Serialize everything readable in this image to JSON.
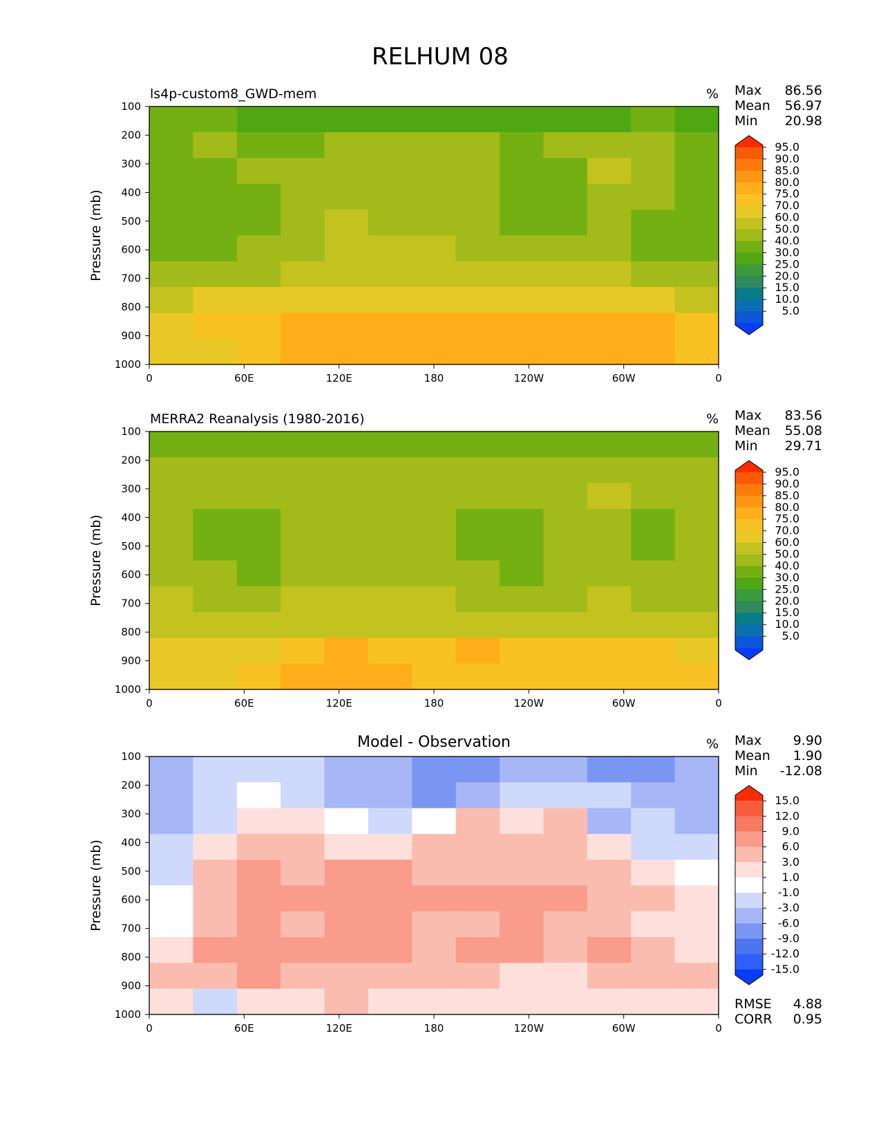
{
  "figure_title": "RELHUM 08",
  "colors": {
    "rh_levels": [
      "#0a3cff",
      "#0b57d8",
      "#0a70b0",
      "#087c87",
      "#2f8b5e",
      "#3b9a3a",
      "#4fa812",
      "#75b012",
      "#a3bb1a",
      "#c4c21f",
      "#e9c928",
      "#f8c322",
      "#fdae18",
      "#fd9612",
      "#fc7a0b",
      "#fb5a05",
      "#fd2b00"
    ],
    "diff_levels": [
      "#0a3cff",
      "#2e5ff6",
      "#4d75f0",
      "#7b95f2",
      "#a6b6f7",
      "#cfd9fb",
      "#ffffff",
      "#fde0dc",
      "#fbbcb0",
      "#f99c8b",
      "#f77a63",
      "#f85a3c",
      "#fd2b00"
    ]
  },
  "panels": [
    {
      "title": "ls4p-custom8_GWD-mem",
      "units": "%",
      "stats": [
        [
          "Max",
          "86.56"
        ],
        [
          "Mean",
          "56.97"
        ],
        [
          "Min",
          "20.98"
        ]
      ],
      "colorbar_labels": [
        "95.0",
        "90.0",
        "85.0",
        "80.0",
        "75.0",
        "70.0",
        "60.0",
        "50.0",
        "40.0",
        "30.0",
        "25.0",
        "20.0",
        "15.0",
        "10.0",
        "5.0"
      ],
      "ylabel": "Pressure (mb)",
      "yticks": [
        "100",
        "200",
        "300",
        "400",
        "500",
        "600",
        "700",
        "800",
        "900",
        "1000"
      ],
      "xticks": [
        "0",
        "60E",
        "120E",
        "180",
        "120W",
        "60W",
        "0"
      ]
    },
    {
      "title": "MERRA2 Reanalysis (1980-2016)",
      "units": "%",
      "stats": [
        [
          "Max",
          "83.56"
        ],
        [
          "Mean",
          "55.08"
        ],
        [
          "Min",
          "29.71"
        ]
      ],
      "colorbar_labels": [
        "95.0",
        "90.0",
        "85.0",
        "80.0",
        "75.0",
        "70.0",
        "60.0",
        "50.0",
        "40.0",
        "30.0",
        "25.0",
        "20.0",
        "15.0",
        "10.0",
        "5.0"
      ],
      "ylabel": "Pressure (mb)",
      "yticks": [
        "100",
        "200",
        "300",
        "400",
        "500",
        "600",
        "700",
        "800",
        "900",
        "1000"
      ],
      "xticks": [
        "0",
        "60E",
        "120E",
        "180",
        "120W",
        "60W",
        "0"
      ]
    },
    {
      "title": "Model - Observation",
      "units": "%",
      "stats": [
        [
          "Max",
          "9.90"
        ],
        [
          "Mean",
          "1.90"
        ],
        [
          "Min",
          "-12.08"
        ]
      ],
      "colorbar_labels": [
        "15.0",
        "12.0",
        "9.0",
        "6.0",
        "3.0",
        "1.0",
        "-1.0",
        "-3.0",
        "-6.0",
        "-9.0",
        "-12.0",
        "-15.0"
      ],
      "ylabel": "Pressure (mb)",
      "yticks": [
        "100",
        "200",
        "300",
        "400",
        "500",
        "600",
        "700",
        "800",
        "900",
        "1000"
      ],
      "xticks": [
        "0",
        "60E",
        "120E",
        "180",
        "120W",
        "60W",
        "0"
      ],
      "metrics": [
        [
          "RMSE",
          "4.88"
        ],
        [
          "CORR",
          "0.95"
        ]
      ]
    }
  ],
  "chart_data": [
    {
      "type": "heatmap",
      "title": "ls4p-custom8_GWD-mem",
      "xlabel": "",
      "ylabel": "Pressure (mb)",
      "x": [
        "0",
        "60E",
        "120E",
        "180",
        "120W",
        "60W",
        "0"
      ],
      "y": [
        100,
        200,
        300,
        400,
        500,
        600,
        700,
        800,
        900,
        1000
      ],
      "ylim": [
        1000,
        100
      ],
      "levels": [
        5,
        10,
        15,
        20,
        25,
        30,
        40,
        50,
        60,
        70,
        75,
        80,
        85,
        90,
        95
      ],
      "values": [
        [
          40,
          42,
          38,
          37,
          38,
          38,
          36,
          35,
          30,
          31,
          36,
          40,
          38
        ],
        [
          48,
          50,
          48,
          47,
          52,
          53,
          52,
          52,
          48,
          52,
          58,
          55,
          47
        ],
        [
          45,
          47,
          50,
          56,
          58,
          57,
          56,
          55,
          47,
          48,
          65,
          55,
          46
        ],
        [
          40,
          42,
          48,
          57,
          58,
          56,
          55,
          52,
          46,
          46,
          58,
          55,
          42
        ],
        [
          42,
          44,
          48,
          57,
          62,
          58,
          58,
          52,
          46,
          46,
          52,
          48,
          44
        ],
        [
          48,
          46,
          52,
          58,
          66,
          62,
          60,
          56,
          52,
          54,
          54,
          48,
          46
        ],
        [
          58,
          56,
          56,
          62,
          68,
          66,
          64,
          62,
          60,
          60,
          62,
          56,
          52
        ],
        [
          68,
          70,
          72,
          72,
          74,
          74,
          72,
          70,
          70,
          70,
          72,
          70,
          66
        ],
        [
          74,
          76,
          78,
          82,
          82,
          80,
          80,
          82,
          80,
          80,
          82,
          80,
          76
        ],
        [
          70,
          74,
          78,
          82,
          80,
          82,
          80,
          82,
          80,
          80,
          80,
          82,
          78
        ]
      ]
    },
    {
      "type": "heatmap",
      "title": "MERRA2 Reanalysis (1980-2016)",
      "xlabel": "",
      "ylabel": "Pressure (mb)",
      "x": [
        "0",
        "60E",
        "120E",
        "180",
        "120W",
        "60W",
        "0"
      ],
      "y": [
        100,
        200,
        300,
        400,
        500,
        600,
        700,
        800,
        900,
        1000
      ],
      "ylim": [
        1000,
        100
      ],
      "levels": [
        5,
        10,
        15,
        20,
        25,
        30,
        40,
        50,
        60,
        70,
        75,
        80,
        85,
        90,
        95
      ],
      "values": [
        [
          44,
          45,
          44,
          46,
          47,
          47,
          46,
          45,
          44,
          45,
          46,
          46,
          45
        ],
        [
          53,
          54,
          51,
          55,
          56,
          56,
          55,
          52,
          52,
          56,
          58,
          56,
          53
        ],
        [
          56,
          55,
          52,
          56,
          58,
          58,
          57,
          52,
          54,
          58,
          64,
          57,
          55
        ],
        [
          50,
          46,
          40,
          55,
          58,
          58,
          55,
          45,
          40,
          52,
          56,
          46,
          50
        ],
        [
          52,
          48,
          40,
          55,
          58,
          57,
          52,
          44,
          40,
          52,
          54,
          44,
          50
        ],
        [
          56,
          52,
          44,
          56,
          58,
          58,
          56,
          50,
          46,
          54,
          55,
          50,
          54
        ],
        [
          60,
          58,
          56,
          60,
          62,
          60,
          60,
          58,
          56,
          58,
          60,
          58,
          58
        ],
        [
          62,
          64,
          64,
          66,
          68,
          68,
          66,
          66,
          64,
          66,
          68,
          66,
          64
        ],
        [
          70,
          70,
          74,
          78,
          80,
          78,
          78,
          80,
          76,
          76,
          78,
          78,
          72
        ],
        [
          74,
          74,
          78,
          80,
          80,
          80,
          78,
          78,
          78,
          78,
          78,
          78,
          76
        ]
      ]
    },
    {
      "type": "heatmap",
      "title": "Model - Observation",
      "xlabel": "",
      "ylabel": "Pressure (mb)",
      "x": [
        "0",
        "60E",
        "120E",
        "180",
        "120W",
        "60W",
        "0"
      ],
      "y": [
        100,
        200,
        300,
        400,
        500,
        600,
        700,
        800,
        900,
        1000
      ],
      "ylim": [
        1000,
        100
      ],
      "levels": [
        -15,
        -12,
        -9,
        -6,
        -3,
        -1,
        1,
        3,
        6,
        9,
        12,
        15
      ],
      "values": [
        [
          -4,
          -3,
          -2,
          -3,
          -5,
          -6,
          -7,
          -8,
          -6,
          -6,
          -9,
          -8,
          -5
        ],
        [
          -4,
          -3,
          0,
          -2,
          -4,
          -6,
          -7,
          -6,
          -3,
          -2,
          -3,
          -4,
          -4
        ],
        [
          -5,
          -2,
          2,
          1,
          -1,
          -2,
          -1,
          3,
          2,
          4,
          -5,
          -3,
          -4
        ],
        [
          -3,
          2,
          5,
          3,
          2,
          1,
          3,
          4,
          4,
          4,
          2,
          -2,
          -3
        ],
        [
          -2,
          3,
          6,
          5,
          6,
          6,
          5,
          4,
          5,
          5,
          4,
          2,
          0
        ],
        [
          -1,
          3,
          7,
          6,
          7,
          7,
          6,
          6,
          7,
          6,
          5,
          3,
          1
        ],
        [
          0,
          5,
          6,
          5,
          6,
          6,
          5,
          5,
          6,
          5,
          4,
          2,
          1
        ],
        [
          2,
          7,
          7,
          6,
          6,
          6,
          5,
          6,
          6,
          5,
          6,
          4,
          2
        ],
        [
          3,
          5,
          6,
          5,
          5,
          4,
          4,
          3,
          2,
          2,
          5,
          4,
          3
        ],
        [
          1,
          -2,
          2,
          2,
          3,
          2,
          2,
          2,
          2,
          2,
          2,
          2,
          1
        ]
      ]
    }
  ]
}
